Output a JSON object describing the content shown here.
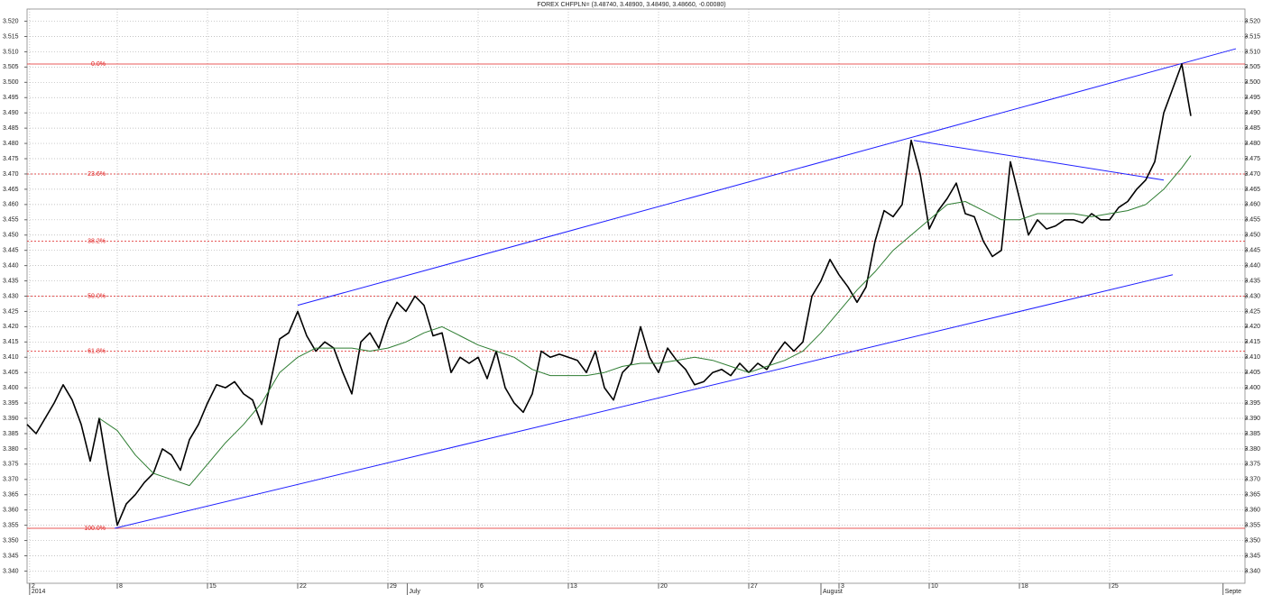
{
  "chart_data": {
    "type": "line",
    "title": "FOREX CHFPLN= (3.48740, 3.48900, 3.48490, 3.48660, -0.00080)",
    "xlim": [
      0,
      94.5
    ],
    "ylim": [
      3.336,
      3.524
    ],
    "grid": true,
    "xticks": [
      {
        "value": 0.2,
        "label": "2"
      },
      {
        "value": 7,
        "label": "8"
      },
      {
        "value": 14,
        "label": "15"
      },
      {
        "value": 21,
        "label": "22"
      },
      {
        "value": 28,
        "label": "29"
      },
      {
        "value": 35,
        "label": "6"
      },
      {
        "value": 42,
        "label": "13"
      },
      {
        "value": 49,
        "label": "20"
      },
      {
        "value": 56,
        "label": "27"
      },
      {
        "value": 63,
        "label": "3"
      },
      {
        "value": 70,
        "label": "10"
      },
      {
        "value": 77,
        "label": "18"
      },
      {
        "value": 84,
        "label": "25"
      }
    ],
    "month_ticks": [
      {
        "value": 0.2,
        "label": "2014"
      },
      {
        "value": 29.5,
        "label": "July"
      },
      {
        "value": 61.6,
        "label": "August"
      },
      {
        "value": 92.8,
        "label": "Septe"
      }
    ],
    "yticks": [
      {
        "value": 3.34,
        "label": "3.340"
      },
      {
        "value": 3.345,
        "label": "3.345"
      },
      {
        "value": 3.35,
        "label": "3.350"
      },
      {
        "value": 3.355,
        "label": "3.355"
      },
      {
        "value": 3.36,
        "label": "3.360"
      },
      {
        "value": 3.365,
        "label": "3.365"
      },
      {
        "value": 3.37,
        "label": "3.370"
      },
      {
        "value": 3.375,
        "label": "3.375"
      },
      {
        "value": 3.38,
        "label": "3.380"
      },
      {
        "value": 3.385,
        "label": "3.385"
      },
      {
        "value": 3.39,
        "label": "3.390"
      },
      {
        "value": 3.395,
        "label": "3.395"
      },
      {
        "value": 3.4,
        "label": "3.400"
      },
      {
        "value": 3.405,
        "label": "3.405"
      },
      {
        "value": 3.41,
        "label": "3.410"
      },
      {
        "value": 3.415,
        "label": "3.415"
      },
      {
        "value": 3.42,
        "label": "3.420"
      },
      {
        "value": 3.425,
        "label": "3.425"
      },
      {
        "value": 3.43,
        "label": "3.430"
      },
      {
        "value": 3.435,
        "label": "3.435"
      },
      {
        "value": 3.44,
        "label": "3.440"
      },
      {
        "value": 3.445,
        "label": "3.445"
      },
      {
        "value": 3.45,
        "label": "3.450"
      },
      {
        "value": 3.455,
        "label": "3.455"
      },
      {
        "value": 3.46,
        "label": "3.460"
      },
      {
        "value": 3.465,
        "label": "3.465"
      },
      {
        "value": 3.47,
        "label": "3.470"
      },
      {
        "value": 3.475,
        "label": "3.475"
      },
      {
        "value": 3.48,
        "label": "3.480"
      },
      {
        "value": 3.485,
        "label": "3.485"
      },
      {
        "value": 3.49,
        "label": "3.490"
      },
      {
        "value": 3.495,
        "label": "3.495"
      },
      {
        "value": 3.5,
        "label": "3.500"
      },
      {
        "value": 3.505,
        "label": "3.505"
      },
      {
        "value": 3.51,
        "label": "3.510"
      },
      {
        "value": 3.515,
        "label": "3.515"
      },
      {
        "value": 3.52,
        "label": "3.520"
      }
    ],
    "series": [
      {
        "color": "#000000",
        "width": 1.6,
        "x": [
          0,
          0.7,
          1.4,
          2.1,
          2.8,
          3.5,
          4.2,
          4.9,
          5.6,
          6.3,
          7,
          7.7,
          8.4,
          9.1,
          9.8,
          10.5,
          11.2,
          11.9,
          12.6,
          13.3,
          14,
          14.7,
          15.4,
          16.1,
          16.8,
          17.5,
          18.2,
          18.9,
          19.6,
          20.3,
          21,
          21.7,
          22.4,
          23.1,
          23.8,
          24.5,
          25.2,
          25.9,
          26.6,
          27.3,
          28,
          28.7,
          29.4,
          30.1,
          30.8,
          31.5,
          32.2,
          32.9,
          33.6,
          34.3,
          35,
          35.7,
          36.4,
          37.1,
          37.8,
          38.5,
          39.2,
          39.9,
          40.6,
          41.3,
          42,
          42.7,
          43.4,
          44.1,
          44.8,
          45.5,
          46.2,
          46.9,
          47.6,
          48.3,
          49,
          49.7,
          50.4,
          51.1,
          51.8,
          52.5,
          53.2,
          53.9,
          54.6,
          55.3,
          56,
          56.7,
          57.4,
          58.1,
          58.8,
          59.5,
          60.2,
          60.9,
          61.6,
          62.3,
          63,
          63.7,
          64.4,
          65.1,
          65.8,
          66.5,
          67.2,
          67.9,
          68.6,
          69.3,
          70,
          70.7,
          71.4,
          72.1,
          72.8,
          73.5,
          74.2,
          74.9,
          75.6,
          76.3,
          77,
          77.7,
          78.4,
          79.1,
          79.8,
          80.5,
          81.2,
          81.9,
          82.6,
          83.3,
          84,
          84.7,
          85.4,
          86.1,
          86.8,
          87.5,
          88.2,
          88.9,
          89.6,
          90.3
        ],
        "values": [
          3.388,
          3.385,
          3.39,
          3.395,
          3.401,
          3.396,
          3.388,
          3.376,
          3.39,
          3.372,
          3.355,
          3.362,
          3.365,
          3.369,
          3.372,
          3.38,
          3.378,
          3.373,
          3.383,
          3.388,
          3.395,
          3.401,
          3.4,
          3.402,
          3.398,
          3.396,
          3.388,
          3.402,
          3.416,
          3.418,
          3.425,
          3.417,
          3.412,
          3.415,
          3.413,
          3.405,
          3.398,
          3.415,
          3.418,
          3.413,
          3.422,
          3.428,
          3.425,
          3.43,
          3.427,
          3.417,
          3.418,
          3.405,
          3.41,
          3.408,
          3.41,
          3.403,
          3.412,
          3.4,
          3.395,
          3.392,
          3.398,
          3.412,
          3.41,
          3.411,
          3.41,
          3.409,
          3.405,
          3.412,
          3.4,
          3.396,
          3.405,
          3.408,
          3.42,
          3.41,
          3.405,
          3.413,
          3.409,
          3.406,
          3.401,
          3.402,
          3.405,
          3.406,
          3.404,
          3.408,
          3.405,
          3.408,
          3.406,
          3.411,
          3.415,
          3.412,
          3.415,
          3.43,
          3.435,
          3.442,
          3.437,
          3.433,
          3.428,
          3.433,
          3.448,
          3.458,
          3.456,
          3.46,
          3.481,
          3.47,
          3.452,
          3.458,
          3.462,
          3.467,
          3.457,
          3.456,
          3.448,
          3.443,
          3.445,
          3.474,
          3.462,
          3.45,
          3.455,
          3.452,
          3.453,
          3.455,
          3.455,
          3.454,
          3.457,
          3.455,
          3.455,
          3.459,
          3.461,
          3.465,
          3.468,
          3.474,
          3.49,
          3.498,
          3.506,
          3.489
        ]
      },
      {
        "color": "#2e7d32",
        "width": 1,
        "x": [
          5.6,
          7,
          8.4,
          9.8,
          11.2,
          12.6,
          14,
          15.4,
          16.8,
          18.2,
          19.6,
          21,
          22.4,
          23.8,
          25.2,
          26.6,
          28,
          29.4,
          30.8,
          32.2,
          33.6,
          35,
          36.4,
          37.8,
          39.2,
          40.6,
          42,
          43.4,
          44.8,
          46.2,
          47.6,
          49,
          50.4,
          51.8,
          53.2,
          54.6,
          56,
          57.4,
          58.8,
          60.2,
          61.6,
          63,
          64.4,
          65.8,
          67.2,
          68.6,
          70,
          71.4,
          72.8,
          74.2,
          75.6,
          77,
          78.4,
          79.8,
          81.2,
          82.6,
          84,
          85.4,
          86.8,
          88.2,
          89.6,
          90.3
        ],
        "values": [
          3.39,
          3.386,
          3.378,
          3.372,
          3.37,
          3.368,
          3.375,
          3.382,
          3.388,
          3.395,
          3.405,
          3.41,
          3.413,
          3.413,
          3.413,
          3.412,
          3.413,
          3.415,
          3.418,
          3.42,
          3.417,
          3.414,
          3.412,
          3.41,
          3.406,
          3.404,
          3.404,
          3.404,
          3.405,
          3.407,
          3.408,
          3.408,
          3.409,
          3.41,
          3.409,
          3.407,
          3.405,
          3.407,
          3.409,
          3.412,
          3.418,
          3.425,
          3.432,
          3.438,
          3.445,
          3.45,
          3.455,
          3.46,
          3.461,
          3.458,
          3.455,
          3.455,
          3.457,
          3.457,
          3.457,
          3.456,
          3.457,
          3.458,
          3.46,
          3.465,
          3.472,
          3.476
        ]
      }
    ],
    "trendline_color": "#2020ff",
    "trendlines": [
      {
        "x": [
          21,
          93.8
        ],
        "values": [
          3.427,
          3.511
        ]
      },
      {
        "x": [
          6.8,
          88.9
        ],
        "values": [
          3.354,
          3.437
        ]
      },
      {
        "x": [
          68.8,
          88.2
        ],
        "values": [
          3.481,
          3.468
        ]
      }
    ],
    "level_color": "#e02020",
    "levels": [
      {
        "value": 3.506,
        "label": "0.0%",
        "dashed": false
      },
      {
        "value": 3.47,
        "label": "23.6%",
        "dashed": true
      },
      {
        "value": 3.448,
        "label": "38.2%",
        "dashed": true
      },
      {
        "value": 3.43,
        "label": "50.0%",
        "dashed": true
      },
      {
        "value": 3.412,
        "label": "61.8%",
        "dashed": true
      },
      {
        "value": 3.354,
        "label": "100.0%",
        "dashed": false
      }
    ]
  }
}
